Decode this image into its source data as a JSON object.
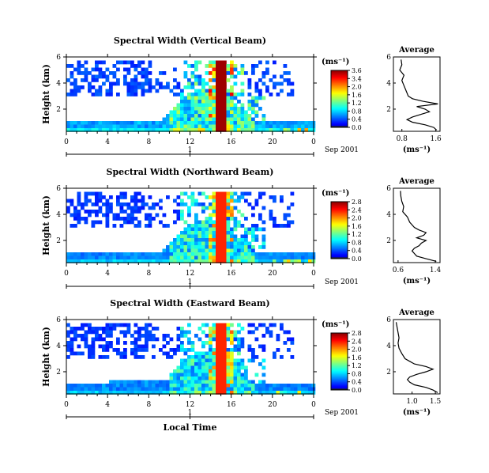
{
  "chart_data": [
    {
      "type": "heatmap",
      "title": "Spectral Width (Vertical Beam)",
      "ylabel": "Height (km)",
      "x_ticks": [
        "0",
        "4",
        "8",
        "12",
        "16",
        "20",
        "0"
      ],
      "y_ticks": [
        "6",
        "4",
        "2"
      ],
      "xlim": [
        0,
        24
      ],
      "ylim": [
        0.3,
        6
      ],
      "date_label": "1",
      "date_suffix": "Sep 2001",
      "colorbar": {
        "unit": "(ms⁻¹)",
        "ticks": [
          "3.6",
          "3.4",
          "2.0",
          "1.6",
          "1.2",
          "0.8",
          "0.4",
          "0.0"
        ],
        "range": [
          0,
          3.6
        ]
      },
      "average": {
        "title": "Average",
        "xlabel": "(ms⁻¹)",
        "x_ticks": [
          "0.8",
          "1.6"
        ],
        "y_ticks": [
          "6",
          "4",
          "2"
        ],
        "xlim": [
          0.6,
          1.7
        ],
        "height": [
          0.4,
          0.6,
          0.8,
          1.0,
          1.2,
          1.4,
          1.6,
          1.8,
          2.0,
          2.2,
          2.4,
          2.6,
          2.8,
          3.0,
          3.4,
          3.8,
          4.2,
          4.6,
          5.0,
          5.4,
          5.8
        ],
        "width": [
          1.62,
          1.55,
          1.35,
          1.05,
          0.92,
          1.05,
          1.25,
          1.45,
          1.35,
          1.15,
          1.65,
          1.3,
          1.05,
          0.95,
          0.9,
          0.85,
          0.8,
          0.85,
          0.75,
          0.8,
          0.78
        ]
      }
    },
    {
      "type": "heatmap",
      "title": "Spectral Width (Northward Beam)",
      "ylabel": "Height (km)",
      "x_ticks": [
        "0",
        "4",
        "8",
        "12",
        "16",
        "20",
        "0"
      ],
      "y_ticks": [
        "6",
        "4",
        "2"
      ],
      "xlim": [
        0,
        24
      ],
      "ylim": [
        0.3,
        6
      ],
      "date_label": "1",
      "date_suffix": "Sep 2001",
      "colorbar": {
        "unit": "(ms⁻¹)",
        "ticks": [
          "2.8",
          "2.4",
          "2.0",
          "1.6",
          "1.2",
          "0.8",
          "0.4",
          "0.0"
        ],
        "range": [
          0,
          2.8
        ]
      },
      "average": {
        "title": "Average",
        "xlabel": "(ms⁻¹)",
        "x_ticks": [
          "0.6",
          "1.4"
        ],
        "y_ticks": [
          "6",
          "4",
          "2"
        ],
        "xlim": [
          0.5,
          1.5
        ],
        "height": [
          0.4,
          0.6,
          0.8,
          1.0,
          1.2,
          1.4,
          1.6,
          1.8,
          2.0,
          2.2,
          2.4,
          2.6,
          2.8,
          3.0,
          3.4,
          3.8,
          4.2,
          4.6,
          5.0,
          5.4,
          5.8
        ],
        "width": [
          1.42,
          1.2,
          1.0,
          0.95,
          0.9,
          0.95,
          1.05,
          1.1,
          1.2,
          1.0,
          1.15,
          1.2,
          1.05,
          0.95,
          0.85,
          0.8,
          0.7,
          0.72,
          0.68,
          0.66,
          0.65
        ]
      }
    },
    {
      "type": "heatmap",
      "title": "Spectral Width (Eastward Beam)",
      "ylabel": "Height (km)",
      "x_ticks": [
        "0",
        "4",
        "8",
        "12",
        "16",
        "20",
        "0"
      ],
      "y_ticks": [
        "6",
        "4",
        "2"
      ],
      "xlim": [
        0,
        24
      ],
      "ylim": [
        0.3,
        6
      ],
      "date_label": "1",
      "date_suffix": "Sep 2001",
      "xlabel": "Local Time",
      "colorbar": {
        "unit": "(ms⁻¹)",
        "ticks": [
          "2.8",
          "2.4",
          "2.0",
          "1.6",
          "1.2",
          "0.8",
          "0.4",
          "0.0"
        ],
        "range": [
          0,
          2.8
        ]
      },
      "average": {
        "title": "Average",
        "xlabel": "(ms⁻¹)",
        "x_ticks": [
          "1.0",
          "1.5"
        ],
        "y_ticks": [
          "6",
          "4",
          "2"
        ],
        "xlim": [
          0.6,
          1.6
        ],
        "height": [
          0.4,
          0.6,
          0.8,
          1.0,
          1.2,
          1.4,
          1.6,
          1.8,
          2.0,
          2.2,
          2.4,
          2.6,
          2.8,
          3.0,
          3.4,
          3.8,
          4.2,
          4.6,
          5.0,
          5.4,
          5.8
        ],
        "width": [
          1.55,
          1.45,
          1.3,
          1.05,
          0.95,
          0.9,
          0.95,
          1.1,
          1.3,
          1.45,
          1.3,
          1.05,
          0.95,
          0.85,
          0.78,
          0.72,
          0.7,
          0.72,
          0.7,
          0.68,
          0.66
        ]
      }
    }
  ]
}
